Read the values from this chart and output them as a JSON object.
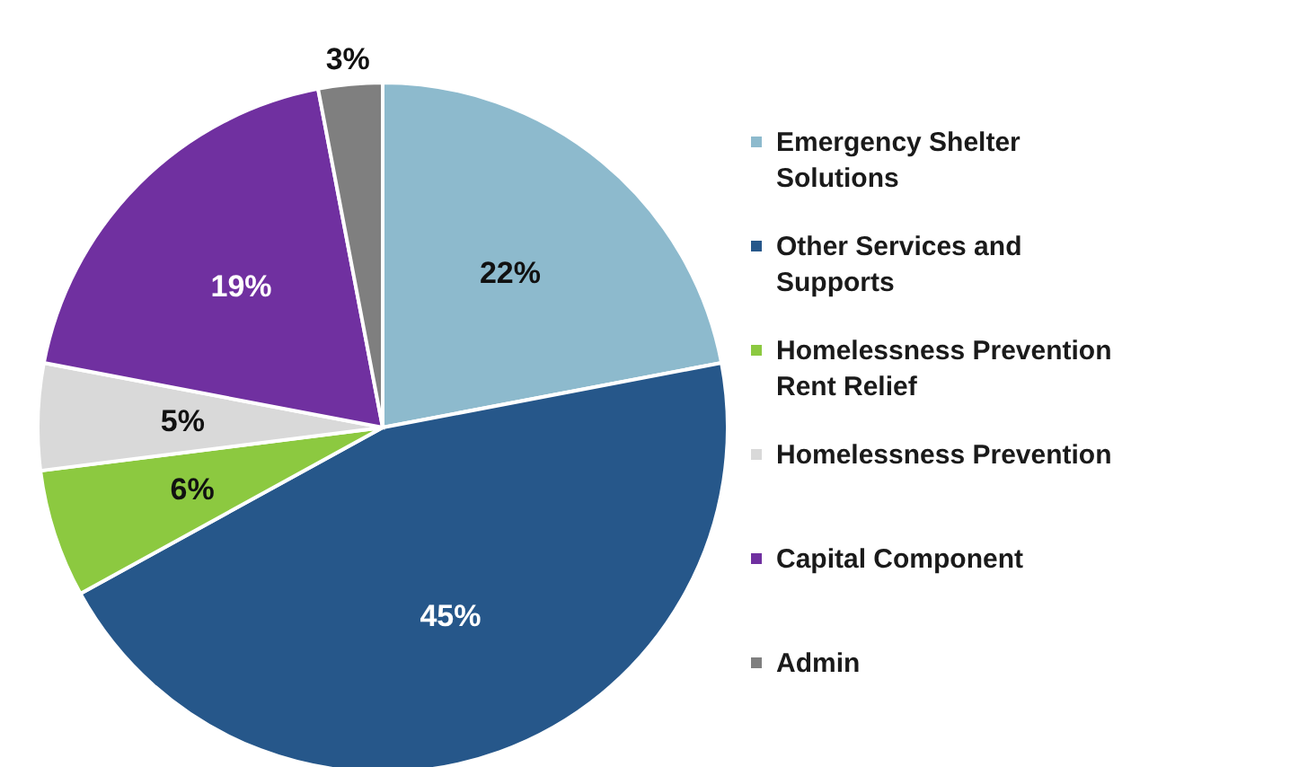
{
  "chart_data": {
    "type": "pie",
    "categories": [
      "Emergency Shelter Solutions",
      "Other Services and Supports",
      "Homelessness Prevention Rent Relief",
      "Homelessness Prevention",
      "Capital Component",
      "Admin"
    ],
    "values": [
      22,
      45,
      6,
      5,
      19,
      3
    ],
    "colors": [
      "#8dbacd",
      "#26578a",
      "#8cc940",
      "#d9d9d9",
      "#7030a0",
      "#7f7f7f"
    ],
    "value_labels": [
      "22%",
      "45%",
      "6%",
      "5%",
      "19%",
      "3%"
    ],
    "legend": "right"
  }
}
